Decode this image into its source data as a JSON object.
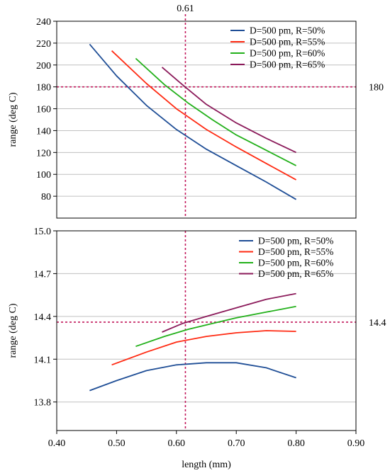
{
  "colors": {
    "axis": "#000000",
    "grid": "#c0c0c0",
    "ref": "#c2185b",
    "series": [
      "#1f4e96",
      "#ff2a12",
      "#22b01a",
      "#8b1a5a"
    ]
  },
  "chart_data": [
    {
      "type": "line",
      "id": "top",
      "ylabel": "range (deg C)",
      "xlim": [
        0.4,
        0.9
      ],
      "ylim": [
        60,
        240
      ],
      "yticks": [
        80,
        100,
        120,
        140,
        160,
        180,
        200,
        220,
        240
      ],
      "ytick_labels": [
        "80",
        "100",
        "120",
        "140",
        "160",
        "180",
        "200",
        "220",
        "240"
      ],
      "grid": true,
      "legend": "top-right",
      "ref_x": 0.615,
      "ref_x_label": "0.61",
      "ref_y": 180,
      "ref_y_label": "180",
      "series": [
        {
          "name": "D=500 pm, R=50%",
          "x": [
            0.455,
            0.5,
            0.55,
            0.6,
            0.65,
            0.7,
            0.75,
            0.8
          ],
          "y": [
            219,
            190,
            163,
            141,
            123,
            108,
            93,
            77
          ]
        },
        {
          "name": "D=500 pm, R=55%",
          "x": [
            0.492,
            0.55,
            0.6,
            0.65,
            0.7,
            0.75,
            0.8
          ],
          "y": [
            213,
            183,
            160,
            141,
            125,
            110,
            95
          ]
        },
        {
          "name": "D=500 pm, R=60%",
          "x": [
            0.532,
            0.58,
            0.62,
            0.66,
            0.7,
            0.75,
            0.8
          ],
          "y": [
            206,
            182,
            165,
            150,
            136,
            122,
            108
          ]
        },
        {
          "name": "D=500 pm, R=65%",
          "x": [
            0.576,
            0.61,
            0.65,
            0.7,
            0.75,
            0.8
          ],
          "y": [
            198,
            182,
            164,
            147,
            133,
            120
          ]
        }
      ]
    },
    {
      "type": "line",
      "id": "bottom",
      "ylabel": "range (deg C)",
      "xlabel": "length (mm)",
      "xlim": [
        0.4,
        0.9
      ],
      "ylim": [
        13.6,
        15.0
      ],
      "xticks": [
        0.4,
        0.5,
        0.6,
        0.7,
        0.8,
        0.9
      ],
      "xtick_labels": [
        "0.40",
        "0.50",
        "0.60",
        "0.70",
        "0.80",
        "0.90"
      ],
      "yticks": [
        13.8,
        14.1,
        14.4,
        14.7,
        15.0
      ],
      "ytick_labels": [
        "13.8",
        "14.1",
        "14.4",
        "14.7",
        "15.0"
      ],
      "grid": true,
      "legend": "top-right",
      "ref_x": 0.615,
      "ref_y": 14.36,
      "ref_y_label": "14.4",
      "series": [
        {
          "name": "D=500 pm, R=50%",
          "x": [
            0.455,
            0.5,
            0.55,
            0.6,
            0.65,
            0.7,
            0.75,
            0.8
          ],
          "y": [
            13.88,
            13.95,
            14.02,
            14.06,
            14.075,
            14.075,
            14.04,
            13.97
          ]
        },
        {
          "name": "D=500 pm, R=55%",
          "x": [
            0.492,
            0.55,
            0.6,
            0.65,
            0.7,
            0.75,
            0.8
          ],
          "y": [
            14.06,
            14.15,
            14.22,
            14.26,
            14.285,
            14.3,
            14.295
          ]
        },
        {
          "name": "D=500 pm, R=60%",
          "x": [
            0.532,
            0.58,
            0.62,
            0.66,
            0.7,
            0.75,
            0.8
          ],
          "y": [
            14.19,
            14.26,
            14.31,
            14.35,
            14.39,
            14.43,
            14.47
          ]
        },
        {
          "name": "D=500 pm, R=65%",
          "x": [
            0.576,
            0.61,
            0.65,
            0.7,
            0.75,
            0.8
          ],
          "y": [
            14.29,
            14.35,
            14.4,
            14.46,
            14.52,
            14.56
          ]
        }
      ]
    }
  ]
}
